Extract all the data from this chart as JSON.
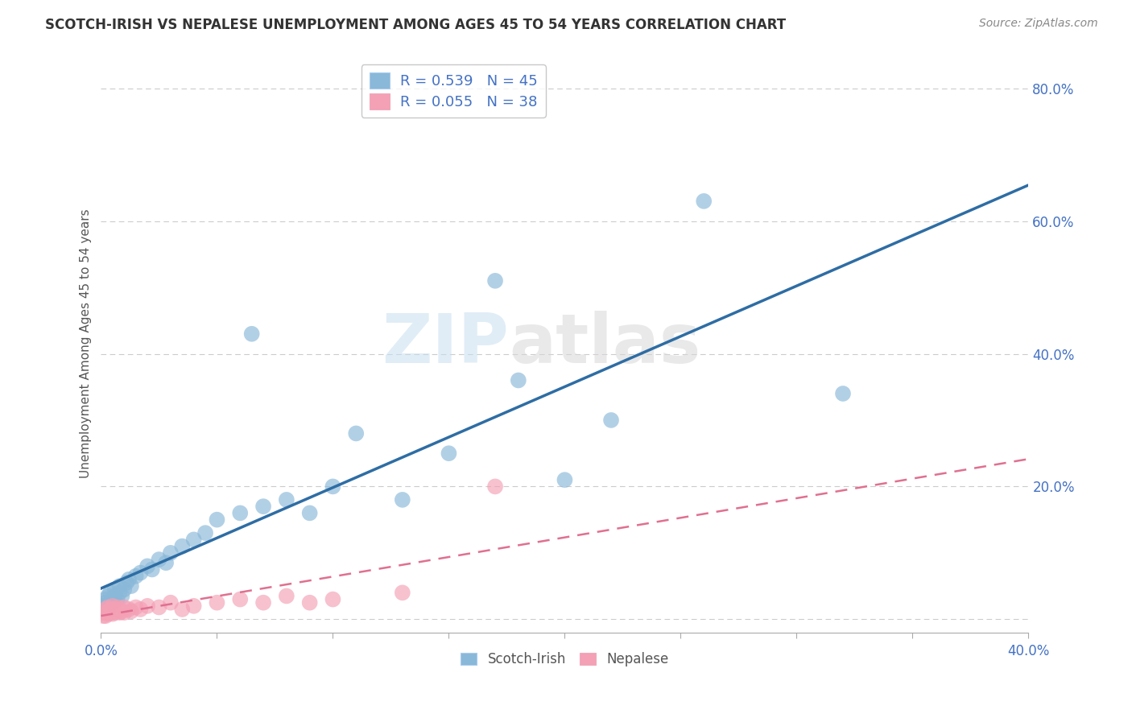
{
  "title": "SCOTCH-IRISH VS NEPALESE UNEMPLOYMENT AMONG AGES 45 TO 54 YEARS CORRELATION CHART",
  "source": "Source: ZipAtlas.com",
  "ylabel": "Unemployment Among Ages 45 to 54 years",
  "xlim": [
    0.0,
    0.4
  ],
  "ylim": [
    -0.02,
    0.85
  ],
  "xticks": [
    0.0,
    0.05,
    0.1,
    0.15,
    0.2,
    0.25,
    0.3,
    0.35,
    0.4
  ],
  "xtick_labels": [
    "0.0%",
    "",
    "",
    "",
    "",
    "",
    "",
    "",
    "40.0%"
  ],
  "yticks": [
    0.0,
    0.2,
    0.4,
    0.6,
    0.8
  ],
  "ytick_labels": [
    "",
    "20.0%",
    "40.0%",
    "60.0%",
    "80.0%"
  ],
  "scotch_irish_color": "#89b8d8",
  "nepalese_color": "#f4a0b5",
  "scotch_irish_line_color": "#2e6da4",
  "nepalese_line_color": "#e07090",
  "scotch_irish_R": 0.539,
  "scotch_irish_N": 45,
  "nepalese_R": 0.055,
  "nepalese_N": 38,
  "scotch_irish_x": [
    0.001,
    0.002,
    0.002,
    0.003,
    0.003,
    0.004,
    0.004,
    0.005,
    0.005,
    0.006,
    0.006,
    0.007,
    0.008,
    0.008,
    0.009,
    0.01,
    0.011,
    0.012,
    0.013,
    0.015,
    0.017,
    0.02,
    0.022,
    0.025,
    0.028,
    0.03,
    0.035,
    0.04,
    0.045,
    0.05,
    0.06,
    0.065,
    0.07,
    0.08,
    0.09,
    0.1,
    0.11,
    0.13,
    0.15,
    0.17,
    0.18,
    0.2,
    0.22,
    0.26,
    0.32
  ],
  "scotch_irish_y": [
    0.02,
    0.025,
    0.03,
    0.015,
    0.035,
    0.02,
    0.04,
    0.025,
    0.03,
    0.035,
    0.045,
    0.03,
    0.04,
    0.05,
    0.035,
    0.045,
    0.055,
    0.06,
    0.05,
    0.065,
    0.07,
    0.08,
    0.075,
    0.09,
    0.085,
    0.1,
    0.11,
    0.12,
    0.13,
    0.15,
    0.16,
    0.43,
    0.17,
    0.18,
    0.16,
    0.2,
    0.28,
    0.18,
    0.25,
    0.51,
    0.36,
    0.21,
    0.3,
    0.63,
    0.34
  ],
  "nepalese_x": [
    0.001,
    0.001,
    0.002,
    0.002,
    0.003,
    0.003,
    0.003,
    0.004,
    0.004,
    0.005,
    0.005,
    0.005,
    0.006,
    0.006,
    0.007,
    0.007,
    0.008,
    0.008,
    0.009,
    0.01,
    0.01,
    0.012,
    0.013,
    0.015,
    0.017,
    0.02,
    0.025,
    0.03,
    0.035,
    0.04,
    0.05,
    0.06,
    0.07,
    0.08,
    0.09,
    0.1,
    0.13,
    0.17
  ],
  "nepalese_y": [
    0.005,
    0.01,
    0.005,
    0.015,
    0.008,
    0.012,
    0.018,
    0.01,
    0.015,
    0.008,
    0.012,
    0.02,
    0.01,
    0.015,
    0.012,
    0.018,
    0.01,
    0.015,
    0.012,
    0.018,
    0.01,
    0.015,
    0.012,
    0.018,
    0.015,
    0.02,
    0.018,
    0.025,
    0.015,
    0.02,
    0.025,
    0.03,
    0.025,
    0.035,
    0.025,
    0.03,
    0.04,
    0.2
  ]
}
